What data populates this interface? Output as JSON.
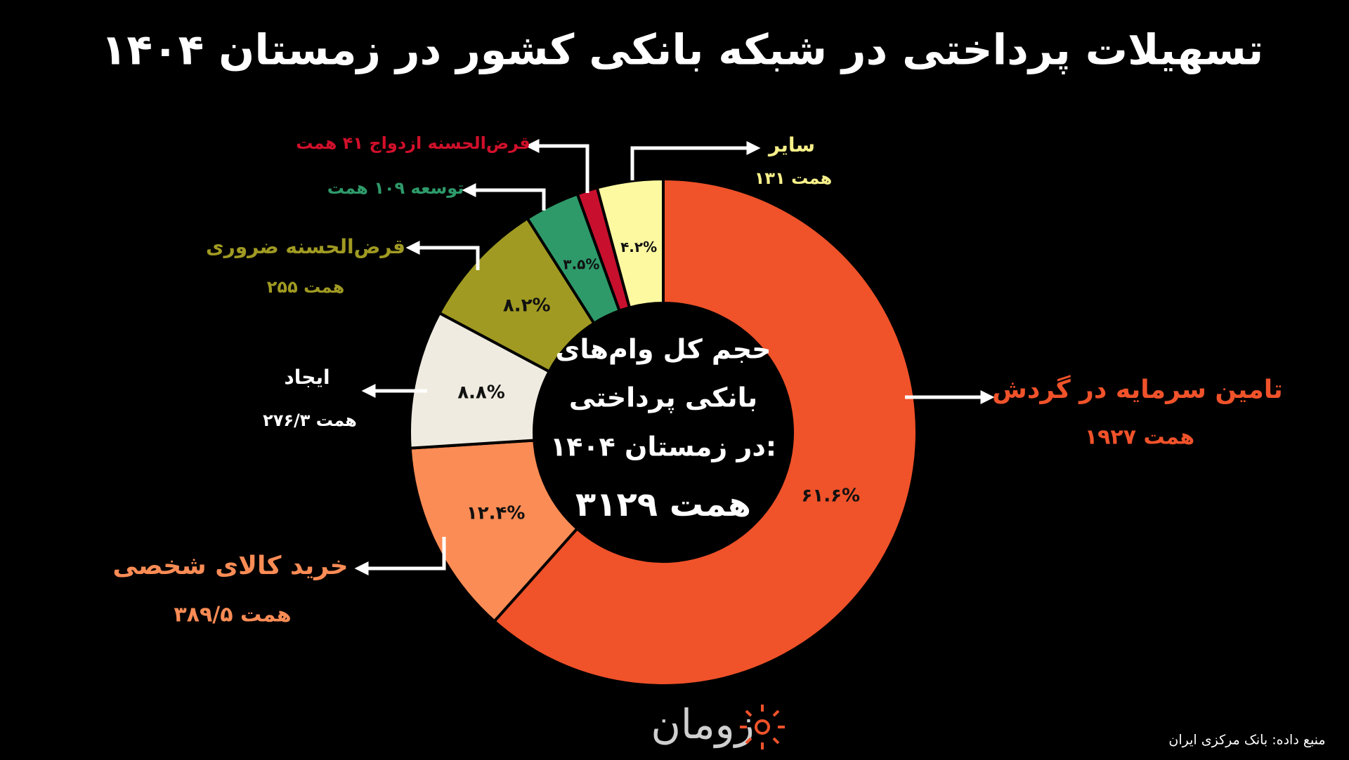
{
  "chart_data": {
    "type": "donut",
    "title": "تسهیلات پرداختی در شبکه بانکی کشور در زمستان ۱۴۰۴",
    "center_text": [
      "حجم کل وام‌های",
      "بانکی پرداختی",
      "در زمستان ۱۴۰۴:",
      "۳۱۲۹ همت"
    ],
    "categories": [
      "تامین سرمایه در گردش",
      "خرید کالای شخصی",
      "ایجاد",
      "قرض‌الحسنه ضروری",
      "توسعه ۱۰۹ همت",
      "قرض‌الحسنه ازدواج ۴۱ همت",
      "سایر"
    ],
    "amount_labels": [
      "۱۹۲۷ همت",
      "۳۸۹/۵ همت",
      "۲۷۶/۳ همت",
      "۲۵۵ همت",
      null,
      null,
      "۱۳۱ همت"
    ],
    "values": [
      61.6,
      12.4,
      8.8,
      8.2,
      3.5,
      1.3,
      4.2
    ],
    "value_labels": [
      "۶۱.۶%",
      "۱۲.۴%",
      "۸.۸%",
      "۸.۲%",
      "۳.۵%",
      null,
      "۴.۲%"
    ],
    "colors": [
      "#f0522a",
      "#fb8c55",
      "#efebe0",
      "#a09a22",
      "#2e9a6a",
      "#c8102e",
      "#fdf9a0"
    ],
    "label_colors": [
      "#f0522a",
      "#fb8c55",
      "#ffffff",
      "#a09a22",
      "#2e9a6a",
      "#d0102a",
      "#f7f08a"
    ],
    "logo": "زومان",
    "source": "منبع داده:  بانک مرکزی ایران"
  }
}
